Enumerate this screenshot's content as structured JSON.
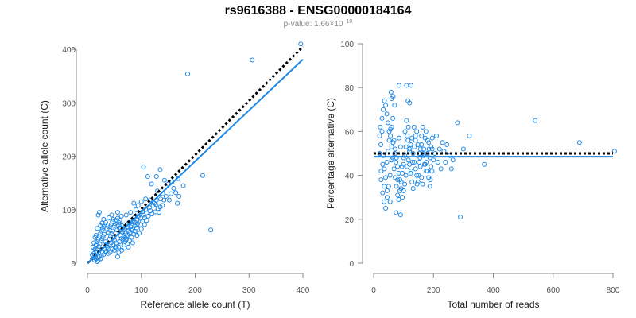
{
  "title": "rs9616388 - ENSG00000184164",
  "subtitle": {
    "label": "p-value: 1.66×10",
    "exponent": "−10"
  },
  "colors": {
    "points": "#1E88E5",
    "fit": "#1E88E5",
    "reference": "#000000",
    "axis": "#888888"
  },
  "chart_data": [
    {
      "type": "scatter",
      "xlabel": "Reference allele count (T)",
      "ylabel": "Alternative allele count (C)",
      "xlim": [
        0,
        400
      ],
      "ylim": [
        0,
        400
      ],
      "xticks": [
        0,
        100,
        200,
        300,
        400
      ],
      "yticks": [
        0,
        100,
        200,
        300,
        400
      ],
      "grid": false,
      "fit_line": {
        "style": "solid",
        "from": [
          0,
          0
        ],
        "to": [
          400,
          381
        ]
      },
      "reference_line": {
        "style": "dotted",
        "from": [
          0,
          0
        ],
        "to": [
          400,
          405
        ]
      },
      "points": [
        [
          186,
          354
        ],
        [
          306,
          380
        ],
        [
          396,
          410
        ],
        [
          229,
          62
        ],
        [
          214,
          164
        ],
        [
          168,
          158
        ],
        [
          157,
          152
        ],
        [
          150,
          148
        ],
        [
          143,
          155
        ],
        [
          135,
          175
        ],
        [
          128,
          162
        ],
        [
          104,
          180
        ],
        [
          112,
          162
        ],
        [
          119,
          148
        ],
        [
          130,
          135
        ],
        [
          167,
          112
        ],
        [
          170,
          125
        ],
        [
          155,
          130
        ],
        [
          140,
          130
        ],
        [
          142,
          118
        ],
        [
          135,
          105
        ],
        [
          127,
          110
        ],
        [
          116,
          118
        ],
        [
          108,
          120
        ],
        [
          100,
          115
        ],
        [
          94,
          108
        ],
        [
          90,
          100
        ],
        [
          86,
          112
        ],
        [
          80,
          95
        ],
        [
          72,
          90
        ],
        [
          63,
          88
        ],
        [
          56,
          95
        ],
        [
          45,
          90
        ],
        [
          40,
          85
        ],
        [
          30,
          82
        ],
        [
          27,
          75
        ],
        [
          24,
          70
        ],
        [
          22,
          95
        ],
        [
          20,
          90
        ],
        [
          18,
          65
        ],
        [
          16,
          52
        ],
        [
          14,
          48
        ],
        [
          12,
          38
        ],
        [
          10,
          30
        ],
        [
          10,
          22
        ],
        [
          9,
          15
        ],
        [
          11,
          10
        ],
        [
          13,
          6
        ],
        [
          15,
          12
        ],
        [
          17,
          20
        ],
        [
          19,
          26
        ],
        [
          21,
          31
        ],
        [
          23,
          36
        ],
        [
          25,
          42
        ],
        [
          27,
          46
        ],
        [
          29,
          50
        ],
        [
          31,
          54
        ],
        [
          33,
          40
        ],
        [
          35,
          35
        ],
        [
          37,
          30
        ],
        [
          39,
          28
        ],
        [
          41,
          45
        ],
        [
          43,
          50
        ],
        [
          45,
          55
        ],
        [
          47,
          60
        ],
        [
          49,
          48
        ],
        [
          51,
          42
        ],
        [
          53,
          38
        ],
        [
          55,
          62
        ],
        [
          57,
          70
        ],
        [
          59,
          66
        ],
        [
          61,
          52
        ],
        [
          63,
          46
        ],
        [
          65,
          58
        ],
        [
          67,
          72
        ],
        [
          69,
          64
        ],
        [
          71,
          56
        ],
        [
          73,
          49
        ],
        [
          75,
          68
        ],
        [
          77,
          76
        ],
        [
          79,
          58
        ],
        [
          81,
          62
        ],
        [
          83,
          70
        ],
        [
          85,
          80
        ],
        [
          87,
          85
        ],
        [
          89,
          76
        ],
        [
          91,
          66
        ],
        [
          93,
          74
        ],
        [
          95,
          88
        ],
        [
          97,
          92
        ],
        [
          99,
          84
        ],
        [
          102,
          96
        ],
        [
          104,
          90
        ],
        [
          106,
          85
        ],
        [
          108,
          100
        ],
        [
          110,
          94
        ],
        [
          113,
          88
        ],
        [
          115,
          104
        ],
        [
          117,
          98
        ],
        [
          120,
          92
        ],
        [
          122,
          108
        ],
        [
          124,
          112
        ],
        [
          126,
          96
        ],
        [
          128,
          118
        ],
        [
          131,
          102
        ],
        [
          133,
          95
        ],
        [
          136,
          120
        ],
        [
          139,
          108
        ],
        [
          146,
          125
        ],
        [
          152,
          118
        ],
        [
          160,
          140
        ],
        [
          164,
          132
        ],
        [
          178,
          145
        ],
        [
          60,
          40
        ],
        [
          58,
          30
        ],
        [
          54,
          28
        ],
        [
          50,
          24
        ],
        [
          46,
          26
        ],
        [
          42,
          20
        ],
        [
          38,
          18
        ],
        [
          34,
          22
        ],
        [
          30,
          16
        ],
        [
          26,
          14
        ],
        [
          24,
          8
        ],
        [
          20,
          5
        ],
        [
          18,
          3
        ],
        [
          16,
          8
        ],
        [
          14,
          15
        ],
        [
          12,
          18
        ],
        [
          22,
          12
        ],
        [
          28,
          20
        ],
        [
          32,
          26
        ],
        [
          36,
          32
        ],
        [
          44,
          38
        ],
        [
          48,
          34
        ],
        [
          52,
          30
        ],
        [
          62,
          36
        ],
        [
          66,
          44
        ],
        [
          70,
          40
        ],
        [
          74,
          36
        ],
        [
          78,
          42
        ],
        [
          82,
          48
        ],
        [
          86,
          54
        ],
        [
          88,
          60
        ],
        [
          92,
          52
        ],
        [
          96,
          56
        ],
        [
          100,
          64
        ],
        [
          84,
          38
        ],
        [
          76,
          30
        ],
        [
          68,
          28
        ],
        [
          64,
          24
        ],
        [
          58,
          20
        ],
        [
          56,
          12
        ],
        [
          14,
          26
        ],
        [
          16,
          34
        ],
        [
          18,
          40
        ],
        [
          20,
          44
        ],
        [
          22,
          50
        ],
        [
          24,
          56
        ],
        [
          26,
          60
        ],
        [
          28,
          64
        ],
        [
          30,
          68
        ],
        [
          32,
          72
        ],
        [
          34,
          76
        ],
        [
          36,
          64
        ],
        [
          38,
          58
        ],
        [
          40,
          62
        ],
        [
          42,
          68
        ],
        [
          44,
          72
        ],
        [
          46,
          78
        ],
        [
          48,
          82
        ],
        [
          50,
          70
        ],
        [
          52,
          74
        ],
        [
          54,
          80
        ],
        [
          56,
          84
        ],
        [
          58,
          76
        ],
        [
          60,
          80
        ],
        [
          62,
          66
        ],
        [
          64,
          70
        ],
        [
          66,
          62
        ],
        [
          68,
          52
        ],
        [
          70,
          48
        ],
        [
          72,
          44
        ],
        [
          74,
          52
        ],
        [
          76,
          60
        ],
        [
          80,
          68
        ],
        [
          84,
          64
        ],
        [
          88,
          70
        ],
        [
          92,
          80
        ],
        [
          98,
          72
        ],
        [
          102,
          78
        ],
        [
          106,
          72
        ],
        [
          110,
          80
        ]
      ]
    },
    {
      "type": "scatter",
      "xlabel": "Total number of reads",
      "ylabel": "Percentage alternative (C)",
      "xlim": [
        0,
        800
      ],
      "ylim": [
        0,
        100
      ],
      "xticks": [
        0,
        200,
        400,
        600,
        800
      ],
      "yticks": [
        0,
        20,
        40,
        60,
        80,
        100
      ],
      "grid": false,
      "fit_line": {
        "style": "solid",
        "y": 48.5
      },
      "reference_line": {
        "style": "dotted",
        "y": 50
      },
      "points": [
        [
          805,
          51
        ],
        [
          688,
          55
        ],
        [
          540,
          65
        ],
        [
          370,
          45
        ],
        [
          290,
          21
        ],
        [
          280,
          64
        ],
        [
          300,
          52
        ],
        [
          320,
          58
        ],
        [
          255,
          49
        ],
        [
          260,
          43
        ],
        [
          240,
          46
        ],
        [
          230,
          55
        ],
        [
          220,
          52
        ],
        [
          210,
          58
        ],
        [
          200,
          47
        ],
        [
          195,
          42
        ],
        [
          190,
          38
        ],
        [
          185,
          52
        ],
        [
          180,
          56
        ],
        [
          175,
          60
        ],
        [
          170,
          45
        ],
        [
          165,
          50
        ],
        [
          160,
          54
        ],
        [
          155,
          48
        ],
        [
          150,
          40
        ],
        [
          145,
          36
        ],
        [
          140,
          58
        ],
        [
          135,
          62
        ],
        [
          130,
          46
        ],
        [
          125,
          42
        ],
        [
          120,
          52
        ],
        [
          115,
          56
        ],
        [
          110,
          65
        ],
        [
          105,
          60
        ],
        [
          100,
          48
        ],
        [
          95,
          44
        ],
        [
          90,
          53
        ],
        [
          85,
          57
        ],
        [
          80,
          38
        ],
        [
          75,
          46
        ],
        [
          70,
          50
        ],
        [
          65,
          55
        ],
        [
          60,
          47
        ],
        [
          55,
          40
        ],
        [
          50,
          35
        ],
        [
          45,
          30
        ],
        [
          40,
          25
        ],
        [
          35,
          28
        ],
        [
          30,
          32
        ],
        [
          25,
          42
        ],
        [
          20,
          50
        ],
        [
          22,
          62
        ],
        [
          28,
          66
        ],
        [
          32,
          70
        ],
        [
          36,
          74
        ],
        [
          40,
          72
        ],
        [
          44,
          68
        ],
        [
          48,
          64
        ],
        [
          52,
          60
        ],
        [
          56,
          58
        ],
        [
          60,
          62
        ],
        [
          64,
          66
        ],
        [
          68,
          56
        ],
        [
          72,
          52
        ],
        [
          76,
          48
        ],
        [
          80,
          44
        ],
        [
          84,
          41
        ],
        [
          88,
          38
        ],
        [
          92,
          34
        ],
        [
          96,
          30
        ],
        [
          100,
          33
        ],
        [
          104,
          36
        ],
        [
          108,
          40
        ],
        [
          112,
          44
        ],
        [
          116,
          47
        ],
        [
          120,
          51
        ],
        [
          124,
          54
        ],
        [
          128,
          57
        ],
        [
          132,
          50
        ],
        [
          136,
          46
        ],
        [
          140,
          43
        ],
        [
          144,
          40
        ],
        [
          148,
          37
        ],
        [
          152,
          46
        ],
        [
          156,
          52
        ],
        [
          160,
          58
        ],
        [
          164,
          62
        ],
        [
          168,
          49
        ],
        [
          172,
          45
        ],
        [
          176,
          42
        ],
        [
          180,
          50
        ],
        [
          184,
          55
        ],
        [
          188,
          48
        ],
        [
          192,
          44
        ],
        [
          196,
          52
        ],
        [
          85,
          81
        ],
        [
          110,
          81
        ],
        [
          125,
          81
        ],
        [
          65,
          76
        ],
        [
          115,
          74
        ],
        [
          120,
          73
        ],
        [
          70,
          72
        ],
        [
          60,
          75
        ],
        [
          58,
          78
        ],
        [
          75,
          23
        ],
        [
          90,
          22
        ],
        [
          55,
          28
        ],
        [
          45,
          33
        ],
        [
          35,
          35
        ],
        [
          30,
          45
        ],
        [
          25,
          38
        ],
        [
          20,
          58
        ],
        [
          24,
          54
        ],
        [
          28,
          60
        ],
        [
          32,
          49
        ],
        [
          36,
          43
        ],
        [
          40,
          39
        ],
        [
          44,
          46
        ],
        [
          48,
          51
        ],
        [
          52,
          56
        ],
        [
          56,
          61
        ],
        [
          60,
          53
        ],
        [
          64,
          48
        ],
        [
          68,
          43
        ],
        [
          72,
          39
        ],
        [
          76,
          35
        ],
        [
          80,
          31
        ],
        [
          84,
          29
        ],
        [
          88,
          33
        ],
        [
          92,
          37
        ],
        [
          96,
          41
        ],
        [
          100,
          45
        ],
        [
          104,
          49
        ],
        [
          108,
          53
        ],
        [
          112,
          58
        ],
        [
          116,
          62
        ],
        [
          120,
          45
        ],
        [
          124,
          41
        ],
        [
          128,
          37
        ],
        [
          132,
          34
        ],
        [
          136,
          53
        ],
        [
          140,
          56
        ],
        [
          144,
          60
        ],
        [
          148,
          54
        ],
        [
          152,
          50
        ],
        [
          156,
          44
        ],
        [
          160,
          39
        ],
        [
          164,
          36
        ],
        [
          168,
          52
        ],
        [
          172,
          57
        ],
        [
          176,
          46
        ],
        [
          180,
          42
        ],
        [
          184,
          39
        ],
        [
          188,
          35
        ],
        [
          192,
          53
        ],
        [
          196,
          57
        ],
        [
          205,
          50
        ],
        [
          215,
          46
        ],
        [
          225,
          43
        ],
        [
          235,
          51
        ],
        [
          245,
          54
        ],
        [
          265,
          47
        ]
      ]
    }
  ]
}
